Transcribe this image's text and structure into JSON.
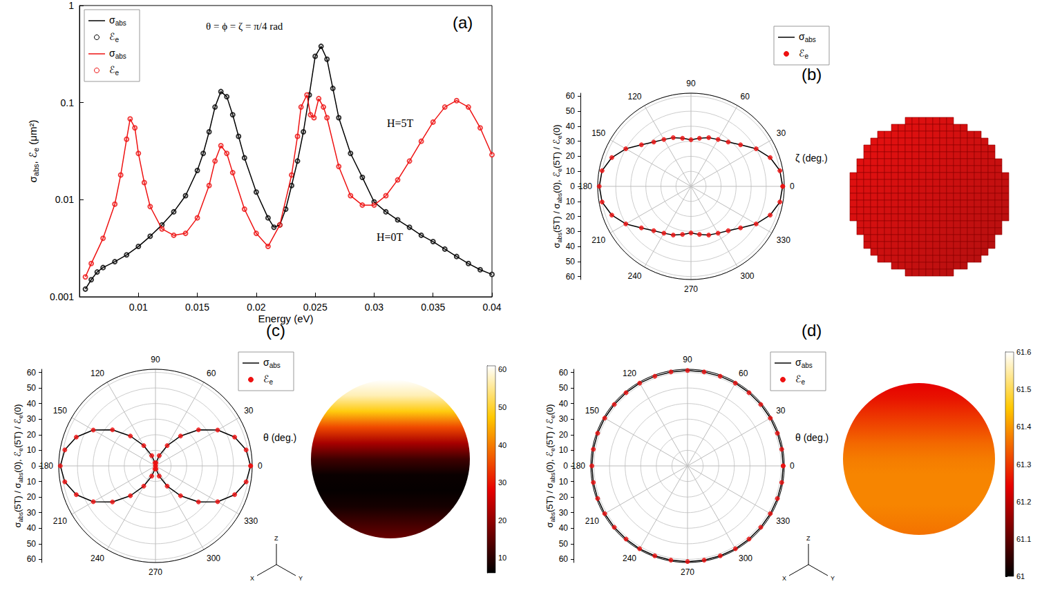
{
  "chart_data": [
    {
      "type": "line",
      "label": "(a)",
      "annotations": [
        "θ = ϕ = ζ = π/4 rad",
        "H=5T",
        "H=0T"
      ],
      "x_label": "Energy (eV)",
      "y_label": "σabs, ℰe (μm²)",
      "log": "y",
      "grid": false,
      "legend": "top-left",
      "xlim": [
        0.005,
        0.04
      ],
      "xticks": [
        0.01,
        0.015,
        0.02,
        0.025,
        0.03,
        0.035,
        0.04
      ],
      "ylim": [
        0.001,
        1
      ],
      "yticks": [
        0.001,
        0.01,
        0.1,
        1
      ],
      "series": [
        {
          "name": "σabs",
          "color": "#000000",
          "marker": "none",
          "line_style": "solid",
          "x": [
            0.0055,
            0.006,
            0.0065,
            0.007,
            0.008,
            0.009,
            0.01,
            0.011,
            0.012,
            0.013,
            0.014,
            0.015,
            0.0155,
            0.016,
            0.0165,
            0.017,
            0.0175,
            0.018,
            0.0185,
            0.019,
            0.02,
            0.021,
            0.0215,
            0.022,
            0.0225,
            0.023,
            0.0235,
            0.024,
            0.0245,
            0.025,
            0.0255,
            0.026,
            0.0265,
            0.027,
            0.028,
            0.029,
            0.03,
            0.031,
            0.032,
            0.033,
            0.034,
            0.035,
            0.036,
            0.037,
            0.038,
            0.039,
            0.04
          ],
          "values": [
            0.0012,
            0.0015,
            0.0018,
            0.002,
            0.0023,
            0.0027,
            0.0033,
            0.0042,
            0.0055,
            0.0075,
            0.011,
            0.02,
            0.03,
            0.05,
            0.09,
            0.13,
            0.115,
            0.075,
            0.045,
            0.027,
            0.012,
            0.0065,
            0.0052,
            0.0055,
            0.008,
            0.014,
            0.025,
            0.05,
            0.12,
            0.3,
            0.38,
            0.28,
            0.14,
            0.07,
            0.03,
            0.017,
            0.0095,
            0.0075,
            0.0062,
            0.0052,
            0.0043,
            0.0037,
            0.0031,
            0.0026,
            0.0022,
            0.0019,
            0.0017
          ]
        },
        {
          "name": "ℰe",
          "color": "#000000",
          "marker": "open_circle",
          "line_style": "none",
          "x": [
            0.0055,
            0.006,
            0.0065,
            0.007,
            0.008,
            0.009,
            0.01,
            0.011,
            0.012,
            0.013,
            0.014,
            0.015,
            0.0155,
            0.016,
            0.0165,
            0.017,
            0.0175,
            0.018,
            0.0185,
            0.019,
            0.02,
            0.021,
            0.0215,
            0.022,
            0.0225,
            0.023,
            0.0235,
            0.024,
            0.0245,
            0.025,
            0.0255,
            0.026,
            0.0265,
            0.027,
            0.028,
            0.029,
            0.03,
            0.031,
            0.032,
            0.033,
            0.034,
            0.035,
            0.036,
            0.037,
            0.038,
            0.039,
            0.04
          ],
          "values": [
            0.0012,
            0.0015,
            0.0018,
            0.002,
            0.0023,
            0.0027,
            0.0033,
            0.0042,
            0.0055,
            0.0075,
            0.011,
            0.02,
            0.03,
            0.05,
            0.09,
            0.13,
            0.115,
            0.075,
            0.045,
            0.027,
            0.012,
            0.0065,
            0.0052,
            0.0055,
            0.008,
            0.014,
            0.025,
            0.05,
            0.12,
            0.3,
            0.38,
            0.28,
            0.14,
            0.07,
            0.03,
            0.017,
            0.0095,
            0.0075,
            0.0062,
            0.0052,
            0.0043,
            0.0037,
            0.0031,
            0.0026,
            0.0022,
            0.0019,
            0.0017
          ]
        },
        {
          "name": "σabs",
          "color": "#ee1111",
          "marker": "none",
          "line_style": "solid",
          "x": [
            0.0055,
            0.006,
            0.007,
            0.008,
            0.0085,
            0.009,
            0.0093,
            0.0097,
            0.01,
            0.0105,
            0.011,
            0.012,
            0.013,
            0.014,
            0.015,
            0.016,
            0.0165,
            0.017,
            0.0175,
            0.018,
            0.019,
            0.02,
            0.021,
            0.022,
            0.023,
            0.0235,
            0.0238,
            0.0243,
            0.0246,
            0.0249,
            0.0253,
            0.0257,
            0.026,
            0.027,
            0.028,
            0.029,
            0.03,
            0.031,
            0.032,
            0.033,
            0.034,
            0.035,
            0.036,
            0.037,
            0.038,
            0.039,
            0.04
          ],
          "values": [
            0.0016,
            0.0022,
            0.004,
            0.009,
            0.018,
            0.042,
            0.068,
            0.055,
            0.03,
            0.015,
            0.0085,
            0.005,
            0.0043,
            0.0045,
            0.0065,
            0.014,
            0.025,
            0.036,
            0.03,
            0.019,
            0.008,
            0.0045,
            0.0033,
            0.0055,
            0.018,
            0.045,
            0.09,
            0.12,
            0.075,
            0.07,
            0.11,
            0.09,
            0.07,
            0.022,
            0.011,
            0.0088,
            0.0088,
            0.011,
            0.016,
            0.025,
            0.04,
            0.063,
            0.09,
            0.105,
            0.09,
            0.055,
            0.029
          ]
        },
        {
          "name": "ℰe",
          "color": "#ee1111",
          "marker": "open_circle",
          "line_style": "none",
          "x": [
            0.0055,
            0.006,
            0.007,
            0.008,
            0.0085,
            0.009,
            0.0093,
            0.0097,
            0.01,
            0.0105,
            0.011,
            0.012,
            0.013,
            0.014,
            0.015,
            0.016,
            0.0165,
            0.017,
            0.0175,
            0.018,
            0.019,
            0.02,
            0.021,
            0.022,
            0.023,
            0.0235,
            0.0238,
            0.0243,
            0.0246,
            0.0249,
            0.0253,
            0.0257,
            0.026,
            0.027,
            0.028,
            0.029,
            0.03,
            0.031,
            0.032,
            0.033,
            0.034,
            0.035,
            0.036,
            0.037,
            0.038,
            0.039,
            0.04
          ],
          "values": [
            0.0016,
            0.0022,
            0.004,
            0.009,
            0.018,
            0.042,
            0.068,
            0.055,
            0.03,
            0.015,
            0.0085,
            0.005,
            0.0043,
            0.0045,
            0.0065,
            0.014,
            0.025,
            0.036,
            0.03,
            0.019,
            0.008,
            0.0045,
            0.0033,
            0.0055,
            0.018,
            0.045,
            0.09,
            0.12,
            0.075,
            0.07,
            0.11,
            0.09,
            0.07,
            0.022,
            0.011,
            0.0088,
            0.0088,
            0.011,
            0.016,
            0.025,
            0.04,
            0.063,
            0.09,
            0.105,
            0.09,
            0.055,
            0.029
          ]
        }
      ]
    },
    {
      "type": "polar",
      "label": "(b)",
      "x_label": "ζ (deg.)",
      "y_label": "σabs(5T) / σabs(0), ℰe(5T) / ℰe(0)",
      "grid": true,
      "legend": "top-right",
      "xlim": [
        0,
        360
      ],
      "xticks": [
        0,
        30,
        60,
        90,
        120,
        150,
        180,
        210,
        240,
        270,
        300,
        330
      ],
      "ylim": [
        0,
        62
      ],
      "yticks": [
        0,
        10,
        20,
        30,
        40,
        50,
        60
      ],
      "x": [
        0,
        10,
        20,
        30,
        40,
        50,
        60,
        70,
        80,
        90,
        100,
        110,
        120,
        130,
        140,
        150,
        160,
        170,
        180,
        190,
        200,
        210,
        220,
        230,
        240,
        250,
        260,
        270,
        280,
        290,
        300,
        310,
        320,
        330,
        340,
        350,
        360
      ],
      "series": [
        {
          "name": "σabs",
          "color": "#000000",
          "marker": "none",
          "line_style": "solid",
          "values": [
            61,
            60,
            56,
            50,
            43,
            38.5,
            36,
            34.5,
            32.5,
            31,
            32.5,
            34.5,
            36,
            38.5,
            43,
            50,
            56,
            60,
            61,
            60,
            56,
            50,
            43,
            38.5,
            36,
            34.5,
            32.5,
            31,
            32.5,
            34.5,
            36,
            38.5,
            43,
            50,
            56,
            60,
            61
          ]
        },
        {
          "name": "ℰe",
          "color": "#ee1111",
          "marker": "circle",
          "line_style": "none",
          "values": [
            61,
            60,
            56,
            50,
            43,
            38.5,
            36,
            34.5,
            32.5,
            31,
            32.5,
            34.5,
            36,
            38.5,
            43,
            50,
            56,
            60,
            61,
            60,
            56,
            50,
            43,
            38.5,
            36,
            34.5,
            32.5,
            31,
            32.5,
            34.5,
            36,
            38.5,
            43,
            50,
            56,
            60,
            61
          ]
        }
      ]
    },
    {
      "type": "polar",
      "label": "(c)",
      "x_label": "θ (deg.)",
      "y_label": "σabs(5T) / σabs(0), ℰe(5T) / ℰe(0)",
      "grid": true,
      "legend": "top-right",
      "xlim": [
        0,
        360
      ],
      "xticks": [
        0,
        30,
        60,
        90,
        120,
        150,
        180,
        210,
        240,
        270,
        300,
        330
      ],
      "ylim": [
        0,
        62
      ],
      "yticks": [
        0,
        10,
        20,
        30,
        40,
        50,
        60
      ],
      "x": [
        0,
        10,
        20,
        30,
        40,
        50,
        60,
        70,
        80,
        90,
        100,
        110,
        120,
        130,
        140,
        150,
        160,
        170,
        180,
        190,
        200,
        210,
        220,
        230,
        240,
        250,
        260,
        270,
        280,
        290,
        300,
        310,
        320,
        330,
        340,
        350,
        360
      ],
      "series": [
        {
          "name": "σabs",
          "color": "#000000",
          "marker": "none",
          "line_style": "solid",
          "values": [
            61,
            59,
            54,
            46,
            36,
            25,
            15,
            7,
            2,
            0,
            2,
            7,
            15,
            25,
            36,
            46,
            54,
            59,
            61,
            59,
            54,
            46,
            36,
            25,
            15,
            7,
            2,
            0,
            2,
            7,
            15,
            25,
            36,
            46,
            54,
            59,
            61
          ]
        },
        {
          "name": "ℰe",
          "color": "#ee1111",
          "marker": "circle",
          "line_style": "none",
          "values": [
            61,
            59,
            54,
            46,
            36,
            25,
            15,
            7,
            2,
            0,
            2,
            7,
            15,
            25,
            36,
            46,
            54,
            59,
            61,
            59,
            54,
            46,
            36,
            25,
            15,
            7,
            2,
            0,
            2,
            7,
            15,
            25,
            36,
            46,
            54,
            59,
            61
          ]
        }
      ],
      "sphere": {
        "heights": [
          1,
          0.8,
          0.6,
          0.4,
          0.2,
          0,
          -0.2,
          -0.4,
          -0.6,
          -0.8,
          -1
        ],
        "values": [
          61,
          57,
          48,
          35,
          22,
          12,
          7,
          6.5,
          8,
          12,
          16
        ],
        "colorbar_range": [
          6,
          61
        ],
        "colorbar_ticks": [
          10,
          20,
          30,
          40,
          50,
          60
        ]
      },
      "axes_labels": [
        "X",
        "Y",
        "Z"
      ]
    },
    {
      "type": "polar",
      "label": "(d)",
      "x_label": "θ (deg.)",
      "y_label": "σabs(5T) / σabs(0), ℰe(5T) / ℰe(0)",
      "grid": true,
      "legend": "top-right",
      "xlim": [
        0,
        360
      ],
      "xticks": [
        0,
        30,
        60,
        90,
        120,
        150,
        180,
        210,
        240,
        270,
        300,
        330
      ],
      "ylim": [
        0,
        62
      ],
      "yticks": [
        0,
        10,
        20,
        30,
        40,
        50,
        60
      ],
      "x": [
        0,
        10,
        20,
        30,
        40,
        50,
        60,
        70,
        80,
        90,
        100,
        110,
        120,
        130,
        140,
        150,
        160,
        170,
        180,
        190,
        200,
        210,
        220,
        230,
        240,
        250,
        260,
        270,
        280,
        290,
        300,
        310,
        320,
        330,
        340,
        350,
        360
      ],
      "series": [
        {
          "name": "σabs",
          "color": "#000000",
          "marker": "none",
          "line_style": "solid",
          "values": [
            61.3,
            61.3,
            61.3,
            61.3,
            61.3,
            61.3,
            61.3,
            61.2,
            61.2,
            61.2,
            61.2,
            61.2,
            61.3,
            61.3,
            61.3,
            61.3,
            61.3,
            61.3,
            61.3,
            61.3,
            61.3,
            61.3,
            61.3,
            61.3,
            61.4,
            61.4,
            61.4,
            61.4,
            61.4,
            61.4,
            61.4,
            61.3,
            61.3,
            61.3,
            61.3,
            61.3,
            61.3
          ]
        },
        {
          "name": "ℰe",
          "color": "#ee1111",
          "marker": "circle",
          "line_style": "none",
          "values": [
            61.3,
            61.3,
            61.3,
            61.3,
            61.3,
            61.3,
            61.3,
            61.2,
            61.2,
            61.2,
            61.2,
            61.2,
            61.3,
            61.3,
            61.3,
            61.3,
            61.3,
            61.3,
            61.3,
            61.3,
            61.3,
            61.3,
            61.3,
            61.3,
            61.4,
            61.4,
            61.4,
            61.4,
            61.4,
            61.4,
            61.4,
            61.3,
            61.3,
            61.3,
            61.3,
            61.3,
            61.3
          ]
        }
      ],
      "sphere": {
        "heights": [
          1,
          0.8,
          0.6,
          0.4,
          0.2,
          0,
          -0.2,
          -0.4,
          -0.6,
          -0.8,
          -1
        ],
        "values": [
          61.24,
          61.26,
          61.29,
          61.32,
          61.35,
          61.37,
          61.38,
          61.38,
          61.38,
          61.37,
          61.36
        ],
        "colorbar_range": [
          61,
          61.6
        ],
        "colorbar_ticks": [
          61,
          61.1,
          61.2,
          61.3,
          61.4,
          61.5,
          61.6
        ]
      },
      "axes_labels": [
        "X",
        "Y",
        "Z"
      ]
    }
  ]
}
